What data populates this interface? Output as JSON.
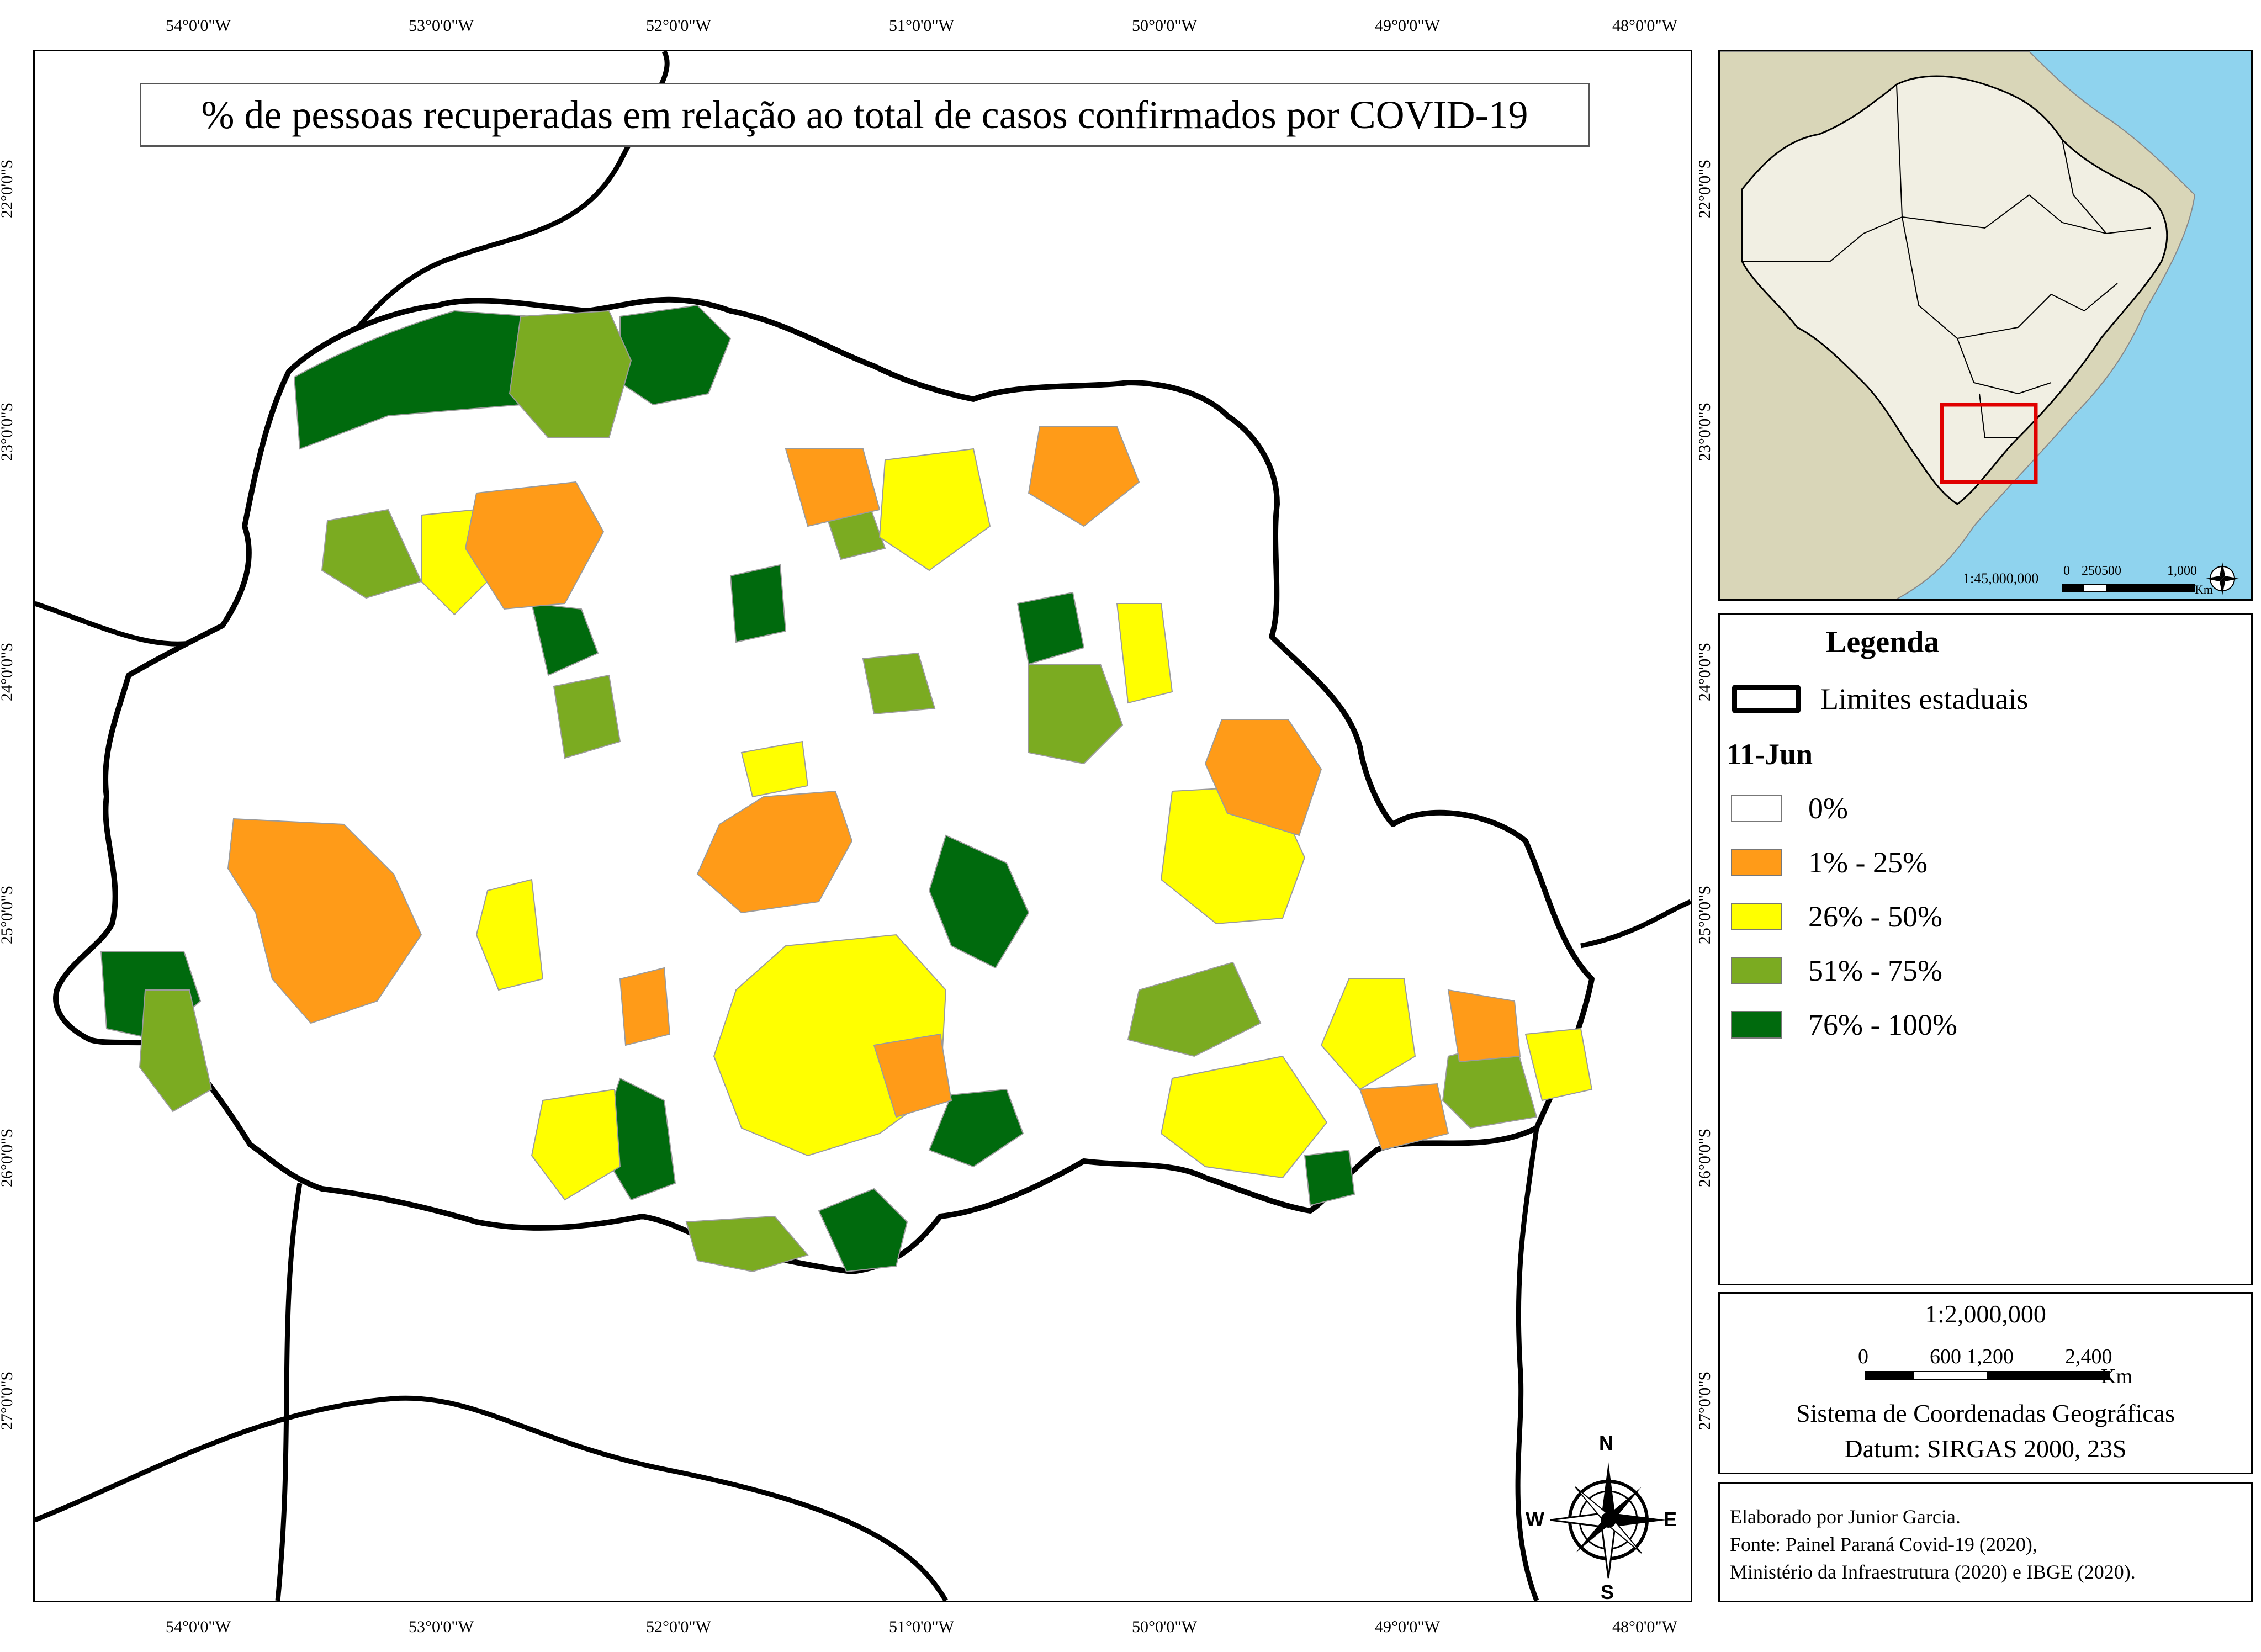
{
  "map": {
    "title": "% de pessoas recuperadas em relação ao total de casos confirmados por COVID-19",
    "lon_ticks": [
      "54°0'0\"W",
      "53°0'0\"W",
      "52°0'0\"W",
      "51°0'0\"W",
      "50°0'0\"W",
      "49°0'0\"W",
      "48°0'0\"W"
    ],
    "lat_ticks_main": [
      "22°0'0\"S",
      "23°0'0\"S",
      "24°0'0\"S",
      "25°0'0\"S",
      "26°0'0\"S",
      "27°0'0\"S"
    ],
    "lat_ticks_side": [
      "22°0'0\"S",
      "23°0'0\"S",
      "24°0'0\"S",
      "25°0'0\"S",
      "26°0'0\"S",
      "27°0'0\"S"
    ],
    "compass": {
      "n": "N",
      "s": "S",
      "e": "E",
      "w": "W"
    }
  },
  "inset": {
    "scale_text": "1:45,000,000",
    "scale_numbers": [
      "0",
      "250500",
      "1,000"
    ],
    "scale_unit": "Km",
    "colors": {
      "ocean": "#8fd3ee",
      "land": "#d9d6b8",
      "brazil": "#f1efe3",
      "highlight": "#e00000"
    }
  },
  "legend": {
    "title": "Legenda",
    "boundary_label": "Limites estaduais",
    "date_label": "11-Jun",
    "classes": [
      {
        "label": "0%",
        "color": "#ffffff"
      },
      {
        "label": "1% - 25%",
        "color": "#ff9b18"
      },
      {
        "label": "26% - 50%",
        "color": "#ffff00"
      },
      {
        "label": "51% - 75%",
        "color": "#7bab21"
      },
      {
        "label": "76% - 100%",
        "color": "#006a0d"
      }
    ]
  },
  "scale_box": {
    "ratio": "1:2,000,000",
    "numbers": [
      "0",
      "600 1,200",
      "2,400"
    ],
    "unit": "Km",
    "crs": "Sistema de Coordenadas Geográficas",
    "datum": "Datum: SIRGAS 2000, 23S"
  },
  "credits": {
    "line1": "Elaborado por Junior Garcia.",
    "line2": "Fonte: Painel Paraná Covid-19 (2020),",
    "line3": "Ministério da Infraestrutura (2020) e IBGE (2020)."
  }
}
